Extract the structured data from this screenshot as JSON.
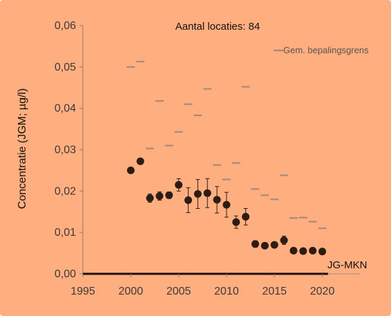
{
  "chart_data": {
    "type": "scatter",
    "title": "",
    "annotation": "Aantal locaties: 84",
    "ylabel": "Concentratie  (JGM; µg/l)",
    "xlabel": "",
    "xlim": [
      1995,
      2024
    ],
    "ylim": [
      0,
      0.06
    ],
    "x_ticks": [
      "1995",
      "2000",
      "2005",
      "2010",
      "2015",
      "2020"
    ],
    "y_ticks": [
      "0,00",
      "0,01",
      "0,02",
      "0,03",
      "0,04",
      "0,05",
      "0,06"
    ],
    "reference_line": {
      "label": "JG-MKN",
      "value": 0
    },
    "background_color": "#FFAF7F",
    "marker_color": "#2b1c14",
    "limit_color": "#a88a7a",
    "legend": {
      "position": "top-right"
    },
    "series": [
      {
        "name": "",
        "kind": "mean_with_error",
        "points": [
          {
            "x": 2000,
            "y": 0.025,
            "err": 0
          },
          {
            "x": 2001,
            "y": 0.0272,
            "err": 0
          },
          {
            "x": 2002,
            "y": 0.0183,
            "err": 0.001
          },
          {
            "x": 2003,
            "y": 0.0188,
            "err": 0.001
          },
          {
            "x": 2004,
            "y": 0.019,
            "err": 0.0008
          },
          {
            "x": 2005,
            "y": 0.0215,
            "err": 0.0015
          },
          {
            "x": 2006,
            "y": 0.0178,
            "err": 0.003
          },
          {
            "x": 2007,
            "y": 0.0193,
            "err": 0.0035
          },
          {
            "x": 2008,
            "y": 0.0195,
            "err": 0.0035
          },
          {
            "x": 2009,
            "y": 0.0179,
            "err": 0.0032
          },
          {
            "x": 2010,
            "y": 0.0167,
            "err": 0.003
          },
          {
            "x": 2011,
            "y": 0.0125,
            "err": 0.0015
          },
          {
            "x": 2012,
            "y": 0.0138,
            "err": 0.002
          },
          {
            "x": 2013,
            "y": 0.0072,
            "err": 0.0008
          },
          {
            "x": 2014,
            "y": 0.0068,
            "err": 0.0005
          },
          {
            "x": 2015,
            "y": 0.007,
            "err": 0.0005
          },
          {
            "x": 2016,
            "y": 0.0081,
            "err": 0.001
          },
          {
            "x": 2017,
            "y": 0.0056,
            "err": 0.0005
          },
          {
            "x": 2018,
            "y": 0.0055,
            "err": 0.0004
          },
          {
            "x": 2019,
            "y": 0.0056,
            "err": 0.0004
          },
          {
            "x": 2020,
            "y": 0.0054,
            "err": 0.0004
          }
        ]
      },
      {
        "name": "Gem. bepalingsgrens",
        "kind": "dash",
        "points": [
          {
            "x": 2000,
            "y": 0.05
          },
          {
            "x": 2001,
            "y": 0.0513
          },
          {
            "x": 2002,
            "y": 0.0303
          },
          {
            "x": 2003,
            "y": 0.0418
          },
          {
            "x": 2004,
            "y": 0.031
          },
          {
            "x": 2005,
            "y": 0.0343
          },
          {
            "x": 2006,
            "y": 0.041
          },
          {
            "x": 2007,
            "y": 0.0383
          },
          {
            "x": 2008,
            "y": 0.0447
          },
          {
            "x": 2009,
            "y": 0.0263
          },
          {
            "x": 2010,
            "y": 0.0228
          },
          {
            "x": 2011,
            "y": 0.0268
          },
          {
            "x": 2012,
            "y": 0.0452
          },
          {
            "x": 2013,
            "y": 0.0205
          },
          {
            "x": 2014,
            "y": 0.019
          },
          {
            "x": 2015,
            "y": 0.018
          },
          {
            "x": 2016,
            "y": 0.0238
          },
          {
            "x": 2017,
            "y": 0.0135
          },
          {
            "x": 2018,
            "y": 0.0136
          },
          {
            "x": 2019,
            "y": 0.0126
          },
          {
            "x": 2020,
            "y": 0.011
          }
        ]
      }
    ]
  }
}
